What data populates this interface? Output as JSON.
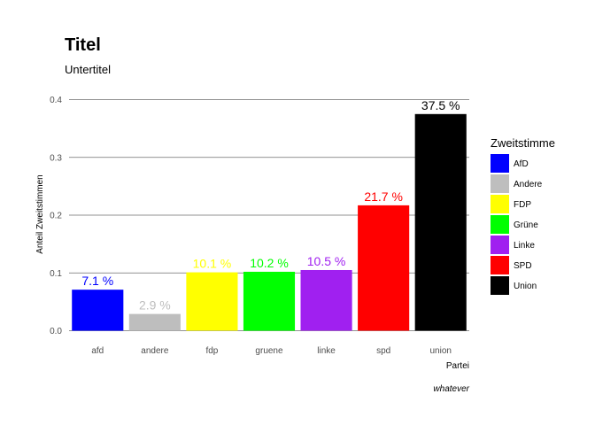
{
  "chart_data": {
    "type": "bar",
    "title": "Titel",
    "subtitle": "Untertitel",
    "xlabel": "Partei",
    "ylabel": "Anteil Zweitstimmen",
    "caption": "whatever",
    "ylim": [
      0,
      0.4
    ],
    "yticks": [
      "0.0",
      "0.1",
      "0.2",
      "0.3",
      "0.4"
    ],
    "categories": [
      "afd",
      "andere",
      "fdp",
      "gruene",
      "linke",
      "spd",
      "union"
    ],
    "values": [
      0.071,
      0.029,
      0.101,
      0.102,
      0.105,
      0.217,
      0.375
    ],
    "data_labels": [
      "7.1 %",
      "2.9 %",
      "10.1 %",
      "10.2 %",
      "10.5 %",
      "21.7 %",
      "37.5 %"
    ],
    "colors": [
      "#0000ff",
      "#bebebe",
      "#ffff00",
      "#00ff00",
      "#a020f0",
      "#ff0000",
      "#000000"
    ],
    "grid": true,
    "legend": {
      "title": "Zweitstimme",
      "placement": "right",
      "entries": [
        "AfD",
        "Andere",
        "FDP",
        "Grüne",
        "Linke",
        "SPD",
        "Union"
      ]
    }
  }
}
